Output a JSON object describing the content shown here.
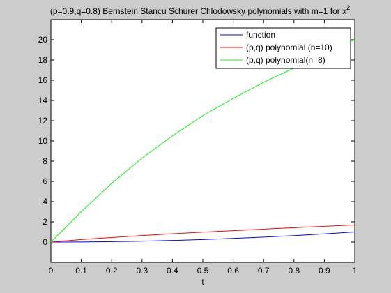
{
  "chart_data": {
    "type": "line",
    "title": "(p=0.9,q=0.8) Bernstein Stancu Schurer Chlodowsky polynomials with m=1 for x",
    "title_superscript": "2",
    "x_label": "t",
    "x": [
      0,
      0.1,
      0.2,
      0.3,
      0.4,
      0.5,
      0.6,
      0.7,
      0.8,
      0.9,
      1
    ],
    "series": [
      {
        "name": "function",
        "color": "#0000ff",
        "values": [
          0,
          0.01,
          0.04,
          0.09,
          0.16,
          0.25,
          0.36,
          0.49,
          0.64,
          0.81,
          1
        ]
      },
      {
        "name": "(p,q) polynomial (n=10)",
        "color": "#ff0000",
        "values": [
          0,
          0.25,
          0.45,
          0.65,
          0.82,
          0.98,
          1.13,
          1.28,
          1.42,
          1.56,
          1.7
        ]
      },
      {
        "name": "(p,q) polynomial(n=8)",
        "color": "#00ff00",
        "values": [
          0,
          3,
          5.8,
          8.3,
          10.5,
          12.5,
          14.2,
          15.8,
          17.2,
          18.7,
          20
        ]
      }
    ],
    "xlim": [
      0,
      1
    ],
    "xticks": [
      0,
      0.1,
      0.2,
      0.3,
      0.4,
      0.5,
      0.6,
      0.7,
      0.8,
      0.9,
      1
    ],
    "ylim": [
      -2,
      22
    ],
    "yticks": [
      0,
      2,
      4,
      6,
      8,
      10,
      12,
      14,
      16,
      18,
      20
    ],
    "grid": false,
    "legend": "upper right"
  }
}
